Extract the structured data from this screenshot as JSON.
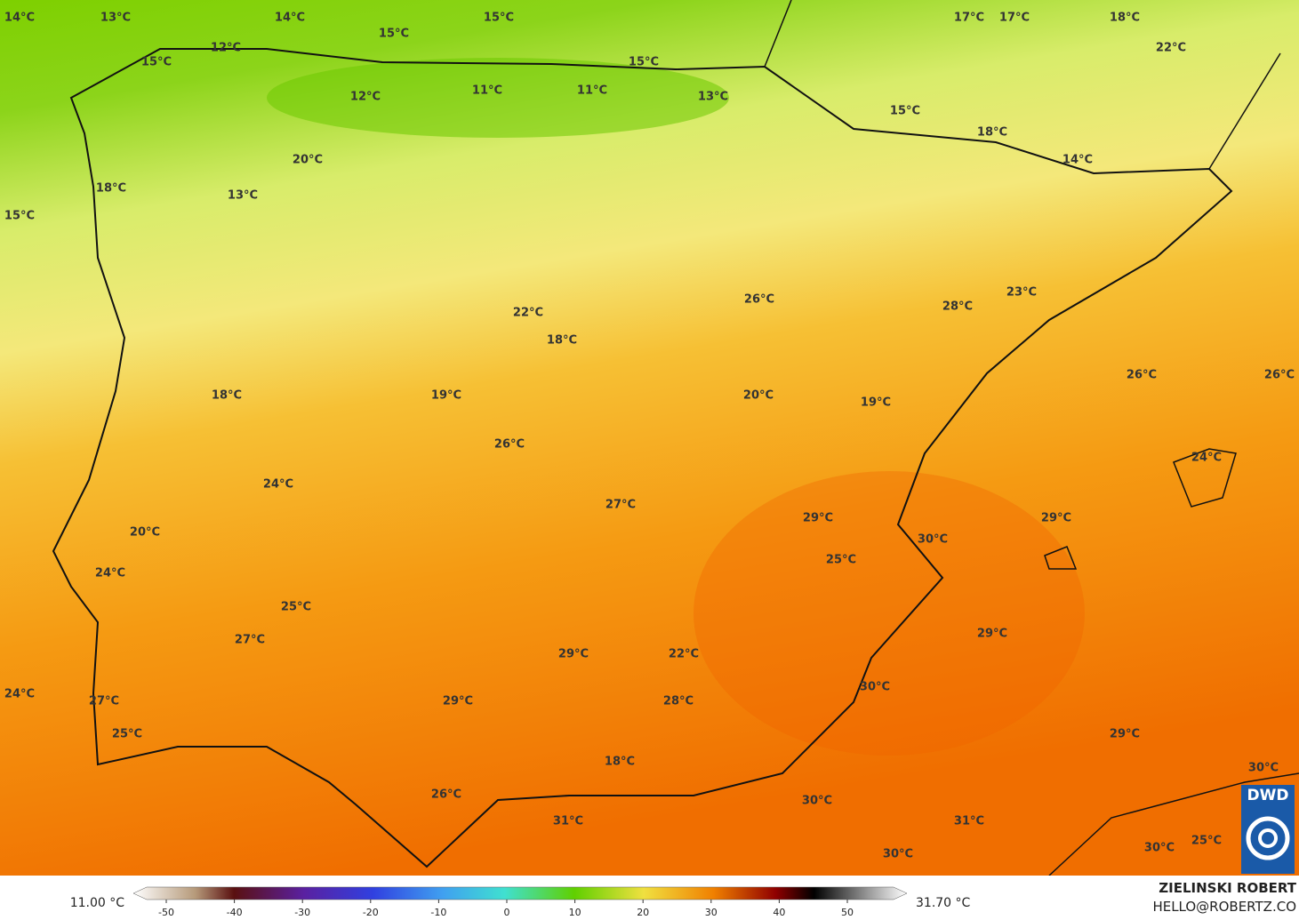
{
  "map_labels": [
    "14°C",
    "13°C",
    "14°C",
    "15°C",
    "17°C",
    "17°C",
    "18°C",
    "15°C",
    "12°C",
    "22°C",
    "15°C",
    "15°C",
    "12°C",
    "11°C",
    "11°C",
    "13°C",
    "15°C",
    "18°C",
    "14°C",
    "20°C",
    "18°C",
    "13°C",
    "15°C",
    "26°C",
    "28°C",
    "23°C",
    "22°C",
    "18°C",
    "26°C",
    "26°C",
    "18°C",
    "19°C",
    "20°C",
    "19°C",
    "26°C",
    "24°C",
    "24°C",
    "27°C",
    "29°C",
    "29°C",
    "20°C",
    "30°C",
    "25°C",
    "24°C",
    "25°C",
    "27°C",
    "29°C",
    "29°C",
    "22°C",
    "30°C",
    "24°C",
    "27°C",
    "29°C",
    "28°C",
    "25°C",
    "29°C",
    "18°C",
    "30°C",
    "26°C",
    "30°C",
    "31°C",
    "31°C",
    "25°C",
    "30°C",
    "30°C"
  ],
  "colorbar": {
    "min_label": "11.00 °C",
    "max_label": "31.70 °C",
    "ticks": [
      -50,
      -40,
      -30,
      -20,
      -10,
      0,
      10,
      20,
      30,
      40,
      50
    ]
  },
  "credits": {
    "author": "ZIELINSKI ROBERT",
    "contact": "HELLO@ROBERTZ.CO",
    "logo": "DWD"
  }
}
